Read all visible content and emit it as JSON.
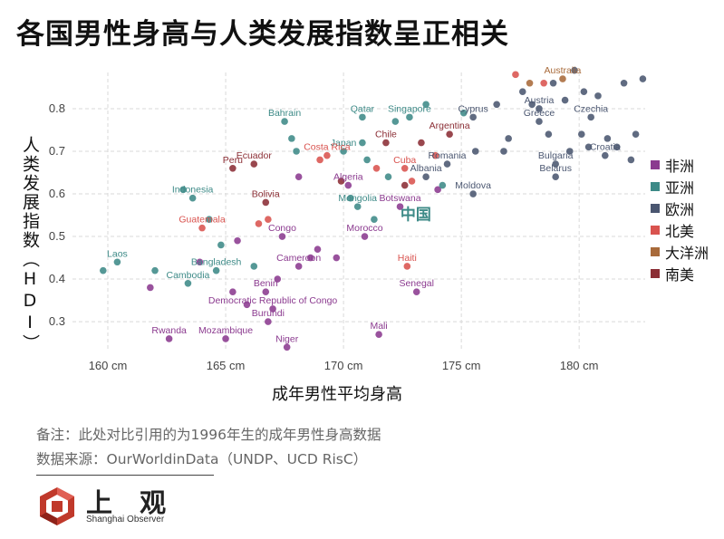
{
  "title": "各国男性身高与人类发展指数呈正相关",
  "note_line1": "备注：此处对比引用的为1996年生的成年男性身高数据",
  "note_line2": "数据来源：OurWorldinData（UNDP、UCD RisC）",
  "logo": {
    "name_cn": "上 观",
    "name_en": "Shanghai Observer"
  },
  "chart_data": {
    "type": "scatter",
    "title": "各国男性身高与人类发展指数呈正相关",
    "xlabel": "成年男性平均身高",
    "ylabel": "人类发展指数（HDI）",
    "xlim": [
      158.5,
      182.8
    ],
    "ylim": [
      0.23,
      0.885
    ],
    "x_ticks": [
      160,
      165,
      170,
      175,
      180
    ],
    "x_tick_labels": [
      "160 cm",
      "165 cm",
      "170 cm",
      "175 cm",
      "180 cm"
    ],
    "y_ticks": [
      0.3,
      0.4,
      0.5,
      0.6,
      0.7,
      0.8
    ],
    "y_tick_labels": [
      "0.3",
      "0.4",
      "0.5",
      "0.6",
      "0.7",
      "0.8"
    ],
    "grid": true,
    "legend_position": "right",
    "groups": [
      {
        "key": "africa",
        "name": "非洲",
        "color": "#8b3a8f"
      },
      {
        "key": "asia",
        "name": "亚洲",
        "color": "#3d8a87"
      },
      {
        "key": "europe",
        "name": "欧洲",
        "color": "#4a5670"
      },
      {
        "key": "namerica",
        "name": "北美",
        "color": "#d9534f"
      },
      {
        "key": "oceania",
        "name": "大洋洲",
        "color": "#a86a3a"
      },
      {
        "key": "samerica",
        "name": "南美",
        "color": "#8b2e35"
      }
    ],
    "highlight": {
      "label": "中国",
      "x": 171.8,
      "y": 0.55,
      "color": "#3d8a87"
    },
    "points": [
      {
        "x": 170.0,
        "y": 0.7,
        "g": "asia",
        "label": "Japan"
      },
      {
        "x": 170.8,
        "y": 0.78,
        "g": "asia",
        "label": "Qatar"
      },
      {
        "x": 167.5,
        "y": 0.77,
        "g": "asia",
        "label": "Bahrain"
      },
      {
        "x": 172.8,
        "y": 0.78,
        "g": "asia",
        "label": "Singapore"
      },
      {
        "x": 175.5,
        "y": 0.78,
        "g": "europe",
        "label": "Cyprus"
      },
      {
        "x": 178.3,
        "y": 0.8,
        "g": "europe",
        "label": "Austria"
      },
      {
        "x": 179.3,
        "y": 0.87,
        "g": "oceania",
        "label": "Australia"
      },
      {
        "x": 178.3,
        "y": 0.77,
        "g": "europe",
        "label": "Greece"
      },
      {
        "x": 180.5,
        "y": 0.78,
        "g": "europe",
        "label": "Czechia"
      },
      {
        "x": 171.8,
        "y": 0.72,
        "g": "samerica",
        "label": "Chile"
      },
      {
        "x": 174.5,
        "y": 0.74,
        "g": "samerica",
        "label": "Argentina"
      },
      {
        "x": 169.3,
        "y": 0.69,
        "g": "namerica",
        "label": "Costa Rica"
      },
      {
        "x": 174.4,
        "y": 0.67,
        "g": "europe",
        "label": "Romania"
      },
      {
        "x": 179.0,
        "y": 0.67,
        "g": "europe",
        "label": "Bulgaria"
      },
      {
        "x": 181.1,
        "y": 0.69,
        "g": "europe",
        "label": "Croatia"
      },
      {
        "x": 166.2,
        "y": 0.67,
        "g": "samerica",
        "label": "Ecuador"
      },
      {
        "x": 165.3,
        "y": 0.66,
        "g": "samerica",
        "label": "Peru"
      },
      {
        "x": 172.6,
        "y": 0.66,
        "g": "namerica",
        "label": "Cuba"
      },
      {
        "x": 179.0,
        "y": 0.64,
        "g": "europe",
        "label": "Belarus"
      },
      {
        "x": 173.5,
        "y": 0.64,
        "g": "europe",
        "label": "Albania"
      },
      {
        "x": 170.2,
        "y": 0.62,
        "g": "africa",
        "label": "Algeria"
      },
      {
        "x": 175.5,
        "y": 0.6,
        "g": "europe",
        "label": "Moldova"
      },
      {
        "x": 163.6,
        "y": 0.59,
        "g": "asia",
        "label": "Indonesia"
      },
      {
        "x": 166.7,
        "y": 0.58,
        "g": "samerica",
        "label": "Bolivia"
      },
      {
        "x": 170.6,
        "y": 0.57,
        "g": "asia",
        "label": "Mongolia"
      },
      {
        "x": 172.4,
        "y": 0.57,
        "g": "africa",
        "label": "Botswana"
      },
      {
        "x": 164.0,
        "y": 0.52,
        "g": "namerica",
        "label": "Guatemala"
      },
      {
        "x": 167.4,
        "y": 0.5,
        "g": "africa",
        "label": "Congo"
      },
      {
        "x": 170.9,
        "y": 0.5,
        "g": "africa",
        "label": "Morocco"
      },
      {
        "x": 160.4,
        "y": 0.44,
        "g": "asia",
        "label": "Laos"
      },
      {
        "x": 164.6,
        "y": 0.42,
        "g": "asia",
        "label": "Bangladesh"
      },
      {
        "x": 168.1,
        "y": 0.43,
        "g": "africa",
        "label": "Cameroon"
      },
      {
        "x": 163.4,
        "y": 0.39,
        "g": "asia",
        "label": "Cambodia"
      },
      {
        "x": 172.7,
        "y": 0.43,
        "g": "namerica",
        "label": "Haiti"
      },
      {
        "x": 166.7,
        "y": 0.37,
        "g": "africa",
        "label": "Benin"
      },
      {
        "x": 173.1,
        "y": 0.37,
        "g": "africa",
        "label": "Senegal"
      },
      {
        "x": 167.0,
        "y": 0.33,
        "g": "africa",
        "label": "Democratic Republic of Congo"
      },
      {
        "x": 166.8,
        "y": 0.3,
        "g": "africa",
        "label": "Burundi"
      },
      {
        "x": 171.5,
        "y": 0.27,
        "g": "africa",
        "label": "Mali"
      },
      {
        "x": 162.6,
        "y": 0.26,
        "g": "africa",
        "label": "Rwanda"
      },
      {
        "x": 165.0,
        "y": 0.26,
        "g": "africa",
        "label": "Mozambique"
      },
      {
        "x": 167.6,
        "y": 0.24,
        "g": "africa",
        "label": "Niger"
      },
      {
        "x": 159.8,
        "y": 0.42,
        "g": "asia"
      },
      {
        "x": 161.8,
        "y": 0.38,
        "g": "africa"
      },
      {
        "x": 162.0,
        "y": 0.42,
        "g": "asia"
      },
      {
        "x": 163.2,
        "y": 0.61,
        "g": "asia"
      },
      {
        "x": 163.9,
        "y": 0.44,
        "g": "africa"
      },
      {
        "x": 164.3,
        "y": 0.54,
        "g": "asia"
      },
      {
        "x": 164.8,
        "y": 0.48,
        "g": "asia"
      },
      {
        "x": 165.3,
        "y": 0.37,
        "g": "africa"
      },
      {
        "x": 165.5,
        "y": 0.49,
        "g": "africa"
      },
      {
        "x": 165.9,
        "y": 0.34,
        "g": "africa"
      },
      {
        "x": 166.2,
        "y": 0.43,
        "g": "asia"
      },
      {
        "x": 166.4,
        "y": 0.53,
        "g": "namerica"
      },
      {
        "x": 166.8,
        "y": 0.54,
        "g": "namerica"
      },
      {
        "x": 167.2,
        "y": 0.4,
        "g": "africa"
      },
      {
        "x": 167.8,
        "y": 0.73,
        "g": "asia"
      },
      {
        "x": 168.0,
        "y": 0.7,
        "g": "asia"
      },
      {
        "x": 168.1,
        "y": 0.64,
        "g": "africa"
      },
      {
        "x": 168.6,
        "y": 0.45,
        "g": "africa"
      },
      {
        "x": 168.9,
        "y": 0.47,
        "g": "africa"
      },
      {
        "x": 169.0,
        "y": 0.68,
        "g": "namerica"
      },
      {
        "x": 169.7,
        "y": 0.45,
        "g": "africa"
      },
      {
        "x": 169.9,
        "y": 0.63,
        "g": "samerica"
      },
      {
        "x": 170.3,
        "y": 0.59,
        "g": "asia"
      },
      {
        "x": 170.8,
        "y": 0.72,
        "g": "asia"
      },
      {
        "x": 171.0,
        "y": 0.68,
        "g": "asia"
      },
      {
        "x": 171.3,
        "y": 0.54,
        "g": "asia"
      },
      {
        "x": 171.4,
        "y": 0.66,
        "g": "namerica"
      },
      {
        "x": 171.9,
        "y": 0.64,
        "g": "asia"
      },
      {
        "x": 172.2,
        "y": 0.77,
        "g": "asia"
      },
      {
        "x": 172.6,
        "y": 0.62,
        "g": "samerica"
      },
      {
        "x": 172.9,
        "y": 0.63,
        "g": "namerica"
      },
      {
        "x": 173.3,
        "y": 0.72,
        "g": "samerica"
      },
      {
        "x": 173.5,
        "y": 0.81,
        "g": "asia"
      },
      {
        "x": 173.9,
        "y": 0.69,
        "g": "namerica"
      },
      {
        "x": 174.0,
        "y": 0.61,
        "g": "africa"
      },
      {
        "x": 174.2,
        "y": 0.62,
        "g": "asia"
      },
      {
        "x": 175.1,
        "y": 0.79,
        "g": "asia"
      },
      {
        "x": 175.6,
        "y": 0.7,
        "g": "europe"
      },
      {
        "x": 176.5,
        "y": 0.81,
        "g": "europe"
      },
      {
        "x": 176.8,
        "y": 0.7,
        "g": "europe"
      },
      {
        "x": 177.0,
        "y": 0.73,
        "g": "europe"
      },
      {
        "x": 177.3,
        "y": 0.88,
        "g": "namerica"
      },
      {
        "x": 177.6,
        "y": 0.84,
        "g": "europe"
      },
      {
        "x": 177.9,
        "y": 0.86,
        "g": "oceania"
      },
      {
        "x": 178.0,
        "y": 0.81,
        "g": "europe"
      },
      {
        "x": 178.5,
        "y": 0.86,
        "g": "namerica"
      },
      {
        "x": 178.7,
        "y": 0.74,
        "g": "europe"
      },
      {
        "x": 178.9,
        "y": 0.86,
        "g": "europe"
      },
      {
        "x": 179.4,
        "y": 0.82,
        "g": "europe"
      },
      {
        "x": 179.6,
        "y": 0.7,
        "g": "europe"
      },
      {
        "x": 179.8,
        "y": 0.89,
        "g": "europe"
      },
      {
        "x": 180.1,
        "y": 0.74,
        "g": "europe"
      },
      {
        "x": 180.2,
        "y": 0.84,
        "g": "europe"
      },
      {
        "x": 180.4,
        "y": 0.71,
        "g": "europe"
      },
      {
        "x": 180.8,
        "y": 0.83,
        "g": "europe"
      },
      {
        "x": 181.2,
        "y": 0.73,
        "g": "europe"
      },
      {
        "x": 181.6,
        "y": 0.71,
        "g": "europe"
      },
      {
        "x": 181.9,
        "y": 0.86,
        "g": "europe"
      },
      {
        "x": 182.2,
        "y": 0.68,
        "g": "europe"
      },
      {
        "x": 182.4,
        "y": 0.74,
        "g": "europe"
      },
      {
        "x": 182.7,
        "y": 0.87,
        "g": "europe"
      }
    ]
  }
}
